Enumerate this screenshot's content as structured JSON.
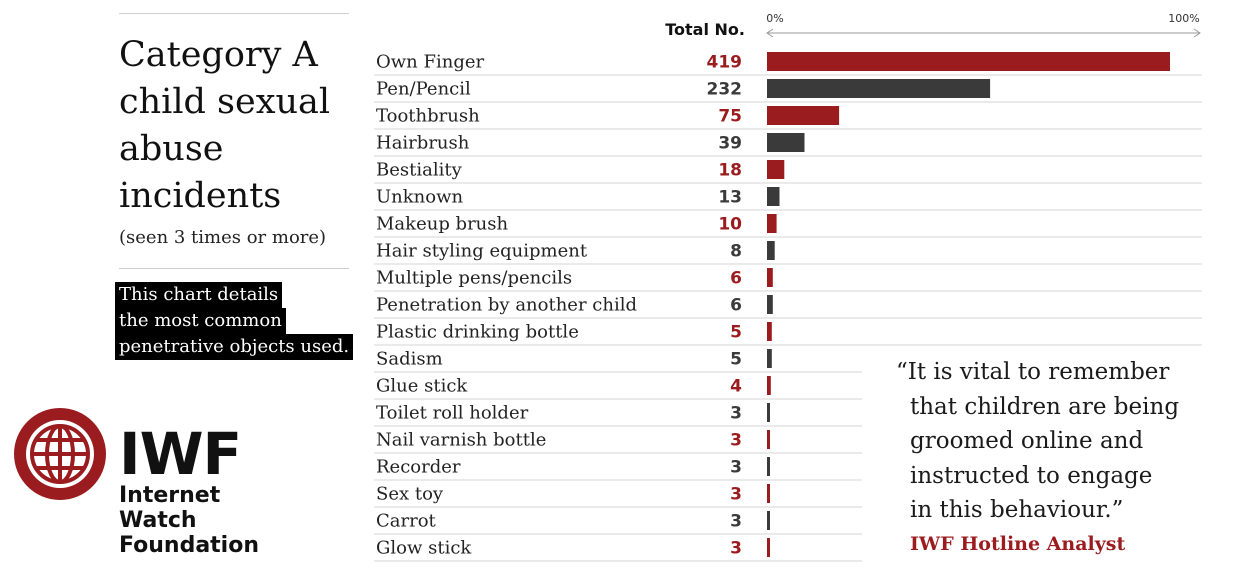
{
  "title": "Category A child sexual abuse incidents",
  "subtitle": "(seen 3 times or more)",
  "note_lines": [
    "This chart details",
    "the most common",
    "penetrative objects used."
  ],
  "logo": {
    "short": "IWF",
    "line1": "Internet",
    "line2": "Watch",
    "line3": "Foundation"
  },
  "colors": {
    "accent_red": "#9b1c1f",
    "dark_grey": "#3a3a3a"
  },
  "chart_data": {
    "type": "bar",
    "orientation": "horizontal",
    "value_column_header": "Total No.",
    "axis_min_label": "0%",
    "axis_max_label": "100%",
    "xlim": [
      0,
      419
    ],
    "categories": [
      "Own Finger",
      "Pen/Pencil",
      "Toothbrush",
      "Hairbrush",
      "Bestiality",
      "Unknown",
      "Makeup brush",
      "Hair styling equipment",
      "Multiple pens/pencils",
      "Penetration by another child",
      "Plastic drinking bottle",
      "Sadism",
      "Glue stick",
      "Toilet roll holder",
      "Nail varnish bottle",
      "Recorder",
      "Sex toy",
      "Carrot",
      "Glow stick"
    ],
    "values": [
      419,
      232,
      75,
      39,
      18,
      13,
      10,
      8,
      6,
      6,
      5,
      5,
      4,
      3,
      3,
      3,
      3,
      3,
      3
    ],
    "bar_colors": [
      "#9b1c1f",
      "#3a3a3a",
      "#9b1c1f",
      "#3a3a3a",
      "#9b1c1f",
      "#3a3a3a",
      "#9b1c1f",
      "#3a3a3a",
      "#9b1c1f",
      "#3a3a3a",
      "#9b1c1f",
      "#3a3a3a",
      "#9b1c1f",
      "#3a3a3a",
      "#9b1c1f",
      "#3a3a3a",
      "#9b1c1f",
      "#3a3a3a",
      "#9b1c1f"
    ],
    "grid": true
  },
  "quote": {
    "lines": [
      "“It is vital to remember",
      "that children are being",
      "groomed online and",
      "instructed to engage",
      "in this behaviour.”"
    ],
    "attribution": "IWF Hotline Analyst"
  }
}
